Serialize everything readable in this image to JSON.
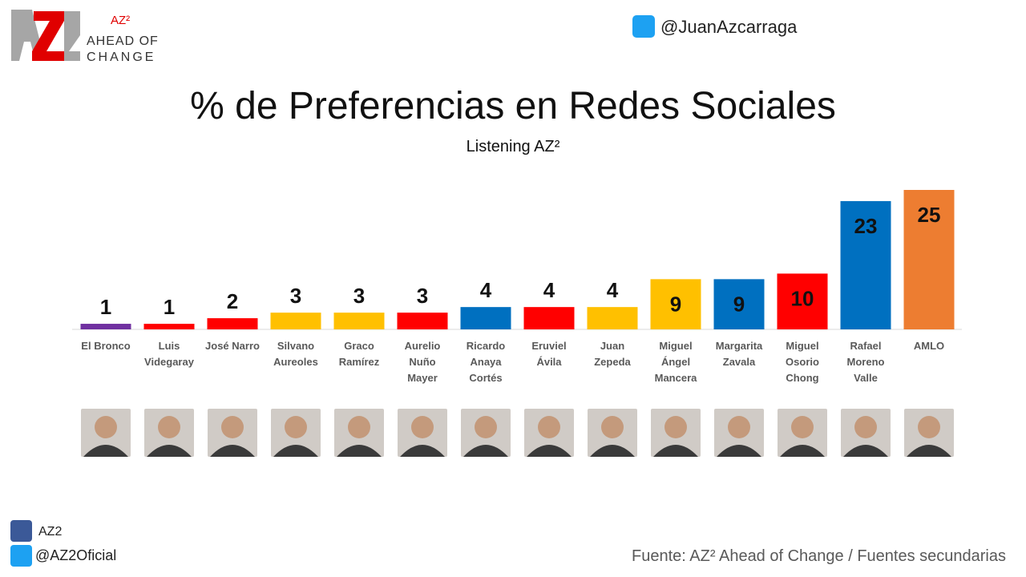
{
  "branding": {
    "logo_mark": "AZ²",
    "logo_line1": "AHEAD OF",
    "logo_line2": "CHANGE",
    "twitter_top": "@JuanAzcarraga",
    "facebook": "AZ2",
    "twitter_bottom": "@AZ2Oficial",
    "source": "Fuente: AZ² Ahead of Change / Fuentes secundarias"
  },
  "chart_data": {
    "type": "bar",
    "title": "% de Preferencias en Redes Sociales",
    "subtitle": "Listening AZ²",
    "categories": [
      "El Bronco",
      "Luis Videgaray",
      "José Narro",
      "Silvano Aureoles",
      "Graco Ramírez",
      "Aurelio Nuño Mayer",
      "Ricardo Anaya Cortés",
      "Eruviel Ávila",
      "Juan Zepeda",
      "Miguel Ángel Mancera",
      "Margarita Zavala",
      "Miguel Osorio Chong",
      "Rafael Moreno Valle",
      "AMLO"
    ],
    "values": [
      1,
      1,
      2,
      3,
      3,
      3,
      4,
      4,
      4,
      9,
      9,
      10,
      23,
      25
    ],
    "colors": [
      "#7030a0",
      "#ff0000",
      "#ff0000",
      "#ffc000",
      "#ffc000",
      "#ff0000",
      "#0070c0",
      "#ff0000",
      "#ffc000",
      "#ffc000",
      "#0070c0",
      "#ff0000",
      "#0070c0",
      "#ed7d31"
    ]
  }
}
